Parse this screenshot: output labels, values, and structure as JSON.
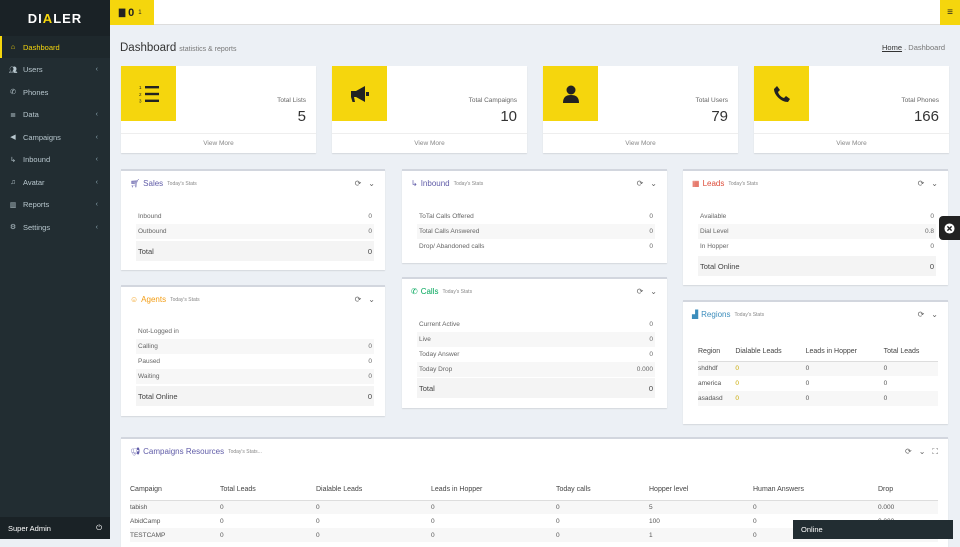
{
  "app": {
    "logo_text": "DIALER",
    "accent_color": "#f5d60d",
    "sidebar_color": "#222d32"
  },
  "topbar": {
    "notification_count": "0",
    "notification_sub": "1",
    "notification_icon": "briefcase-icon",
    "menu_icon": "hamburger-icon"
  },
  "sidebar": {
    "items": [
      {
        "label": "Dashboard",
        "icon": "home-icon",
        "active": true,
        "chevron": false
      },
      {
        "label": "Users",
        "icon": "users-icon",
        "chevron": true
      },
      {
        "label": "Phones",
        "icon": "phone-icon",
        "chevron": false
      },
      {
        "label": "Data",
        "icon": "database-icon",
        "chevron": true
      },
      {
        "label": "Campaigns",
        "icon": "bullhorn-icon",
        "chevron": true
      },
      {
        "label": "Inbound",
        "icon": "level-down-icon",
        "chevron": true
      },
      {
        "label": "Avatar",
        "icon": "music-icon",
        "chevron": true
      },
      {
        "label": "Reports",
        "icon": "bar-chart-icon",
        "chevron": true
      },
      {
        "label": "Settings",
        "icon": "gear-icon",
        "chevron": true
      }
    ],
    "footer_user": "Super Admin",
    "footer_icon": "power-icon"
  },
  "header": {
    "title": "Dashboard",
    "subtitle": "statistics & reports",
    "breadcrumb_home": "Home",
    "breadcrumb_sep": ".",
    "breadcrumb_current": "Dashboard"
  },
  "stats": [
    {
      "label": "Total Lists",
      "value": "5",
      "link": "View More",
      "icon": "list-ol-icon"
    },
    {
      "label": "Total Campaigns",
      "value": "10",
      "link": "View More",
      "icon": "bullhorn-icon"
    },
    {
      "label": "Total Users",
      "value": "79",
      "link": "View More",
      "icon": "user-icon"
    },
    {
      "label": "Total Phones",
      "value": "166",
      "link": "View More",
      "icon": "phone-icon"
    }
  ],
  "today_stats": "Today's Stats",
  "today_stats_trunc": "Today's Stats...",
  "sales": {
    "title": "Sales",
    "color": "#605ca8",
    "rows": [
      {
        "k": "Inbound",
        "v": "0"
      },
      {
        "k": "Outbound",
        "v": "0"
      }
    ],
    "total_label": "Total",
    "total": "0"
  },
  "inbound": {
    "title": "Inbound",
    "color": "#605ca8",
    "rows": [
      {
        "k": "ToTal Calls Offered",
        "v": "0"
      },
      {
        "k": "Total Calls Answered",
        "v": "0"
      },
      {
        "k": "Drop/ Abandoned calls",
        "v": "0"
      }
    ]
  },
  "leads": {
    "title": "Leads",
    "color": "#dd4b39",
    "rows": [
      {
        "k": "Available",
        "v": "0"
      },
      {
        "k": "Dial Level",
        "v": "0.8"
      },
      {
        "k": "In Hopper",
        "v": "0"
      }
    ],
    "total_label": "Total Online",
    "total": "0"
  },
  "agents": {
    "title": "Agents",
    "color": "#f39c12",
    "rows": [
      {
        "k": "Not-Logged in",
        "v": ""
      },
      {
        "k": "Calling",
        "v": "0"
      },
      {
        "k": "Paused",
        "v": "0"
      },
      {
        "k": "Waiting",
        "v": "0"
      }
    ],
    "total_label": "Total Online",
    "total": "0"
  },
  "calls": {
    "title": "Calls",
    "color": "#00a65a",
    "rows": [
      {
        "k": "Current Active",
        "v": "0"
      },
      {
        "k": "Live",
        "v": "0"
      },
      {
        "k": "Today Answer",
        "v": "0"
      },
      {
        "k": "Today Drop",
        "v": "0.000"
      }
    ],
    "total_label": "Total",
    "total": "0"
  },
  "regions": {
    "title": "Regions",
    "color": "#3c8dbc",
    "headers": [
      "Region",
      "Dialable Leads",
      "Leads in Hopper",
      "Total Leads"
    ],
    "rows": [
      [
        "shdhdf",
        "0",
        "0",
        "0"
      ],
      [
        "america",
        "0",
        "0",
        "0"
      ],
      [
        "asadasd",
        "0",
        "0",
        "0"
      ]
    ]
  },
  "campaigns": {
    "title": "Campaigns Resources",
    "color": "#605ca8",
    "headers": [
      "Campaign",
      "Total Leads",
      "Dialable Leads",
      "Leads in Hopper",
      "Today calls",
      "Hopper level",
      "Human Answers",
      "Drop"
    ],
    "rows": [
      [
        "tabish",
        "0",
        "0",
        "0",
        "0",
        "5",
        "0",
        "0.000"
      ],
      [
        "AbidCamp",
        "0",
        "0",
        "0",
        "0",
        "100",
        "0",
        "0.000"
      ],
      [
        "TESTCAMP",
        "0",
        "0",
        "0",
        "0",
        "1",
        "0",
        "0.000"
      ]
    ]
  },
  "chat": {
    "status": "Online"
  }
}
